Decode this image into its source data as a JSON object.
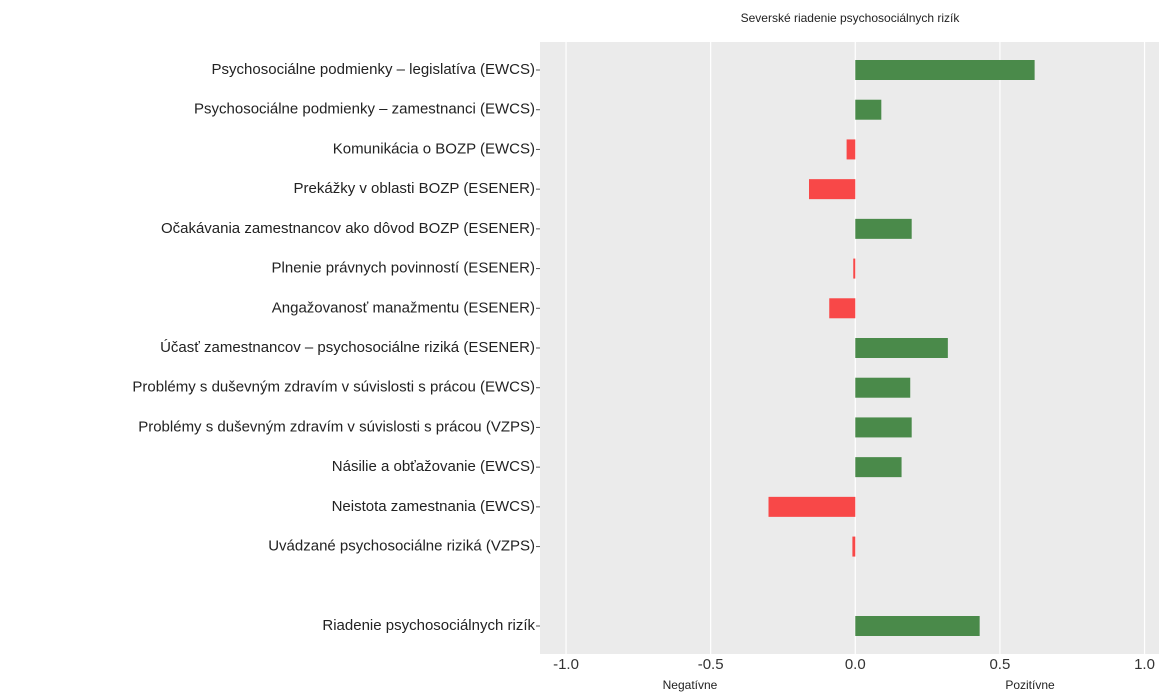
{
  "chart_data": {
    "type": "barh",
    "title": "Severské riadenie psychosociálnych rizík",
    "x_label_negative": "Negatívne",
    "x_label_positive": "Pozitívne",
    "categories": [
      "Psychosociálne podmienky – legislatíva (EWCS)",
      "Psychosociálne podmienky – zamestnanci (EWCS)",
      "Komunikácia o BOZP (EWCS)",
      "Prekážky v oblasti BOZP (ESENER)",
      "Očakávania zamestnancov ako dôvod  BOZP (ESENER)",
      "Plnenie právnych povinností  (ESENER)",
      "Angažovanosť manažmentu (ESENER)",
      "Účasť zamestnancov – psychosociálne riziká (ESENER)",
      "Problémy s duševným zdravím v súvislosti s prácou (EWCS)",
      "Problémy s duševným zdravím v súvislosti s prácou (VZPS)",
      "Násilie a obťažovanie  (EWCS)",
      "Neistota zamestnania (EWCS)",
      "Uvádzané  psychosociálne riziká (VZPS)",
      null,
      "Riadenie psychosociálnych rizík"
    ],
    "values": [
      0.62,
      0.09,
      -0.03,
      -0.16,
      0.195,
      -0.007,
      -0.09,
      0.32,
      0.19,
      0.195,
      0.16,
      -0.3,
      -0.01,
      null,
      0.43
    ],
    "positive_color": "#4a8a4a",
    "negative_color": "#f84848",
    "xlim": [
      -1.09,
      1.05
    ],
    "xticks": [
      {
        "value": -1,
        "label": "-1.0"
      },
      -0.5,
      {
        "value": 0,
        "label": "0.0"
      },
      0.5,
      {
        "value": 1,
        "label": "1.0"
      }
    ],
    "grid": true
  }
}
